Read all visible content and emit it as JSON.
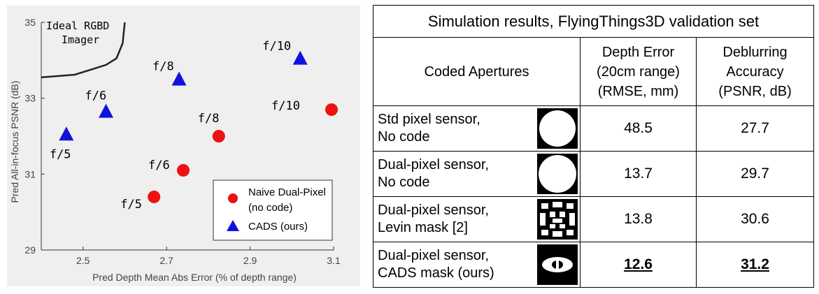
{
  "chart_data": {
    "type": "scatter",
    "xlabel": "Pred Depth Mean Abs Error (% of depth range)",
    "ylabel": "Pred All-in-focus PSNR (dB)",
    "xlim": [
      2.4,
      3.1
    ],
    "ylim": [
      29,
      35
    ],
    "xticks": [
      "2.5",
      "2.7",
      "2.9",
      "3.1"
    ],
    "yticks": [
      "29",
      "31",
      "33",
      "35"
    ],
    "ideal_label_line1": "Ideal RGBD",
    "ideal_label_line2": "Imager",
    "ideal_curve": [
      [
        2.4,
        33.55
      ],
      [
        2.48,
        33.62
      ],
      [
        2.555,
        33.88
      ],
      [
        2.58,
        34.05
      ],
      [
        2.595,
        34.45
      ],
      [
        2.6,
        35
      ]
    ],
    "legend_position": "bottom-right",
    "series": [
      {
        "name": "Naive Dual-Pixel",
        "legend_line2": "(no code)",
        "marker": "circle",
        "color": "#ee1111",
        "points": [
          {
            "x": 2.67,
            "y": 30.4,
            "label": "f/5"
          },
          {
            "x": 2.74,
            "y": 31.1,
            "label": "f/6"
          },
          {
            "x": 2.825,
            "y": 32.0,
            "label": "f/8"
          },
          {
            "x": 3.095,
            "y": 32.7,
            "label": "f/10"
          }
        ]
      },
      {
        "name": "CADS (ours)",
        "marker": "triangle",
        "color": "#1111dd",
        "points": [
          {
            "x": 2.46,
            "y": 32.05,
            "label": "f/5"
          },
          {
            "x": 2.555,
            "y": 32.65,
            "label": "f/6"
          },
          {
            "x": 2.73,
            "y": 33.5,
            "label": "f/8"
          },
          {
            "x": 3.02,
            "y": 34.05,
            "label": "f/10"
          }
        ]
      }
    ]
  },
  "table": {
    "title": "Simulation results, FlyingThings3D validation set",
    "headers": [
      "Coded Apertures",
      "Depth Error\n(20cm range)\n(RMSE, mm)",
      "Deblurring\nAccuracy\n(PSNR, dB)"
    ],
    "rows": [
      {
        "label1": "Std pixel sensor,",
        "label2": "No code",
        "mask": "std-circle-mask-icon",
        "depth": "48.5",
        "psnr": "27.7",
        "best": false
      },
      {
        "label1": "Dual-pixel sensor,",
        "label2": "No code",
        "mask": "dual-circle-mask-icon",
        "depth": "13.7",
        "psnr": "29.7",
        "best": false
      },
      {
        "label1": "Dual-pixel sensor,",
        "label2": "Levin mask [2]",
        "mask": "levin-mask-icon",
        "depth": "13.8",
        "psnr": "30.6",
        "best": false
      },
      {
        "label1": "Dual-pixel sensor,",
        "label2": "CADS mask (ours)",
        "mask": "cads-mask-icon",
        "depth": "12.6",
        "psnr": "31.2",
        "best": true
      }
    ]
  }
}
